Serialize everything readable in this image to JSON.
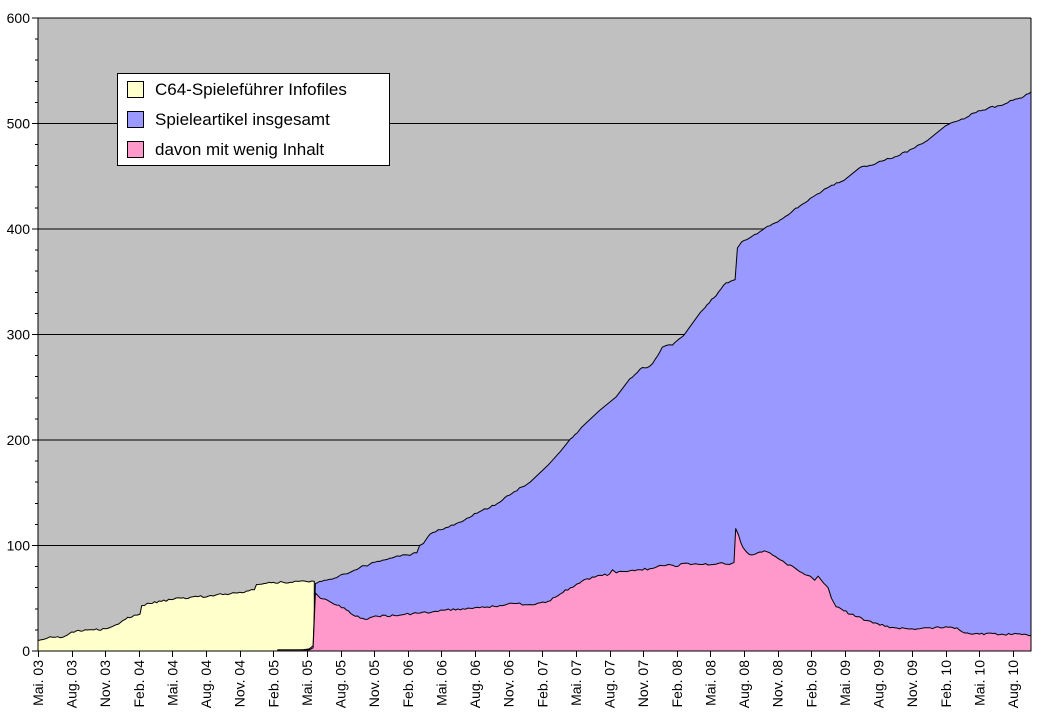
{
  "chart_data": {
    "type": "area",
    "title": "",
    "xlabel": "",
    "ylabel": "",
    "x_unit": "months since Mai. 03 (labels every 3 months)",
    "ylim": [
      0,
      600
    ],
    "y_ticks": [
      0,
      100,
      200,
      300,
      400,
      500,
      600
    ],
    "y_minor_tick_step": 20,
    "grid": "horizontal major gridlines, black, on gray plot background",
    "legend_position": "top-left",
    "x_months_span": 88.6,
    "x_tick_months": [
      0,
      3,
      6,
      9,
      12,
      15,
      18,
      21,
      24,
      27,
      30,
      33,
      36,
      39,
      42,
      45,
      48,
      51,
      54,
      57,
      60,
      63,
      66,
      69,
      72,
      75,
      78,
      81,
      84,
      87
    ],
    "x_tick_labels": [
      "Mai. 03",
      "Aug. 03",
      "Nov. 03",
      "Feb. 04",
      "Mai. 04",
      "Aug. 04",
      "Nov. 04",
      "Feb. 05",
      "Mai. 05",
      "Aug. 05",
      "Nov. 05",
      "Feb. 06",
      "Mai. 06",
      "Aug. 06",
      "Nov. 06",
      "Feb. 07",
      "Mai. 07",
      "Aug. 07",
      "Nov. 07",
      "Feb. 08",
      "Mai. 08",
      "Aug. 08",
      "Nov. 08",
      "Feb. 09",
      "Mai. 09",
      "Aug. 09",
      "Nov. 09",
      "Feb. 10",
      "Mai. 10",
      "Aug. 10"
    ],
    "colors": {
      "page_bg": "#FFFFFF",
      "plot_bg": "#C0C0C0",
      "grid": "#000000",
      "outline": "#000000",
      "axis": "#000000",
      "legend_bg": "#FFFFFF",
      "series_yellow": "#FFFFCC",
      "series_blue": "#9999FF",
      "series_pink": "#FF99CC"
    },
    "series": [
      {
        "name": "C64-Spieleführer Infofiles",
        "color": "#FFFFCC",
        "points": [
          [
            0,
            10
          ],
          [
            0.5,
            11
          ],
          [
            0.8,
            12
          ],
          [
            1.3,
            13
          ],
          [
            2.2,
            13
          ],
          [
            2.6,
            15
          ],
          [
            3.0,
            18
          ],
          [
            4.0,
            19
          ],
          [
            5.0,
            20
          ],
          [
            6.0,
            21
          ],
          [
            6.6,
            23
          ],
          [
            7.0,
            25
          ],
          [
            7.8,
            30
          ],
          [
            8.6,
            34
          ],
          [
            9.1,
            35
          ],
          [
            9.25,
            43
          ],
          [
            10.0,
            45
          ],
          [
            11.0,
            47
          ],
          [
            12.1,
            49
          ],
          [
            13.6,
            51
          ],
          [
            15.2,
            52
          ],
          [
            16.7,
            54
          ],
          [
            17.8,
            55
          ],
          [
            18.8,
            57
          ],
          [
            19.3,
            58
          ],
          [
            19.5,
            63
          ],
          [
            20.2,
            64
          ],
          [
            21.0,
            65
          ],
          [
            22.5,
            65
          ],
          [
            23.3,
            66
          ],
          [
            24.65,
            66
          ]
        ]
      },
      {
        "name": "Spieleartikel insgesamt",
        "color": "#9999FF",
        "points": [
          [
            21.4,
            1
          ],
          [
            23.5,
            1
          ],
          [
            24.2,
            2
          ],
          [
            24.55,
            5
          ],
          [
            24.75,
            64
          ],
          [
            25.3,
            66
          ],
          [
            26.0,
            68
          ],
          [
            27.3,
            73
          ],
          [
            28.7,
            79
          ],
          [
            30.3,
            85
          ],
          [
            31.8,
            89
          ],
          [
            33.0,
            91
          ],
          [
            33.8,
            93
          ],
          [
            34.05,
            100
          ],
          [
            34.4,
            102
          ],
          [
            35.0,
            111
          ],
          [
            36.4,
            117
          ],
          [
            37.6,
            122
          ],
          [
            39.4,
            132
          ],
          [
            41.2,
            141
          ],
          [
            42.5,
            151
          ],
          [
            43.9,
            160
          ],
          [
            45.5,
            176
          ],
          [
            46.6,
            189
          ],
          [
            47.5,
            201
          ],
          [
            48.5,
            212
          ],
          [
            50.1,
            228
          ],
          [
            51.6,
            241
          ],
          [
            52.8,
            258
          ],
          [
            53.7,
            267
          ],
          [
            54.6,
            270
          ],
          [
            55.1,
            277
          ],
          [
            55.7,
            288
          ],
          [
            56.6,
            290
          ],
          [
            57.6,
            299
          ],
          [
            59.1,
            321
          ],
          [
            59.9,
            330
          ],
          [
            60.7,
            340
          ],
          [
            61.4,
            349
          ],
          [
            62.2,
            352
          ],
          [
            62.4,
            382
          ],
          [
            62.8,
            388
          ],
          [
            63.7,
            393
          ],
          [
            65.3,
            403
          ],
          [
            66.7,
            412
          ],
          [
            68.0,
            422
          ],
          [
            68.9,
            429
          ],
          [
            70.6,
            440
          ],
          [
            71.9,
            446
          ],
          [
            73.3,
            458
          ],
          [
            74.9,
            463
          ],
          [
            76.9,
            470
          ],
          [
            78.0,
            476
          ],
          [
            79.6,
            486
          ],
          [
            81.0,
            498
          ],
          [
            82.2,
            503
          ],
          [
            83.9,
            512
          ],
          [
            85.8,
            517
          ],
          [
            87.0,
            522
          ],
          [
            88.0,
            526
          ],
          [
            88.6,
            530
          ]
        ]
      },
      {
        "name": "davon mit wenig Inhalt",
        "color": "#FF99CC",
        "points": [
          [
            21.4,
            1
          ],
          [
            24.2,
            1
          ],
          [
            24.55,
            3
          ],
          [
            24.75,
            55
          ],
          [
            25.2,
            50
          ],
          [
            26.0,
            47
          ],
          [
            27.3,
            41
          ],
          [
            28.3,
            33
          ],
          [
            29.2,
            30
          ],
          [
            30.3,
            33
          ],
          [
            32.3,
            34
          ],
          [
            34.1,
            36
          ],
          [
            36.4,
            39
          ],
          [
            39.4,
            41
          ],
          [
            41.2,
            43
          ],
          [
            42.5,
            45
          ],
          [
            43.9,
            44
          ],
          [
            45.5,
            47
          ],
          [
            46.6,
            54
          ],
          [
            47.5,
            60
          ],
          [
            48.5,
            66
          ],
          [
            49.7,
            70
          ],
          [
            51.0,
            73
          ],
          [
            51.25,
            77
          ],
          [
            51.6,
            74
          ],
          [
            52.8,
            76
          ],
          [
            54.6,
            78
          ],
          [
            56.2,
            82
          ],
          [
            56.9,
            80
          ],
          [
            57.6,
            83
          ],
          [
            59.1,
            82
          ],
          [
            60.7,
            83
          ],
          [
            61.7,
            82
          ],
          [
            62.1,
            84
          ],
          [
            62.25,
            116
          ],
          [
            62.5,
            110
          ],
          [
            62.7,
            103
          ],
          [
            62.9,
            98
          ],
          [
            63.2,
            94
          ],
          [
            63.7,
            91
          ],
          [
            64.2,
            93
          ],
          [
            64.8,
            95
          ],
          [
            65.3,
            93
          ],
          [
            66.0,
            88
          ],
          [
            66.7,
            83
          ],
          [
            67.5,
            79
          ],
          [
            68.2,
            74
          ],
          [
            68.9,
            71
          ],
          [
            69.3,
            67
          ],
          [
            69.6,
            71
          ],
          [
            69.9,
            67
          ],
          [
            70.5,
            60
          ],
          [
            70.8,
            50
          ],
          [
            71.2,
            42
          ],
          [
            71.9,
            38
          ],
          [
            72.9,
            33
          ],
          [
            73.9,
            29
          ],
          [
            74.9,
            26
          ],
          [
            76.0,
            22
          ],
          [
            78.0,
            21
          ],
          [
            79.6,
            22
          ],
          [
            81.0,
            23
          ],
          [
            82.0,
            22
          ],
          [
            82.7,
            17
          ],
          [
            84.0,
            16
          ],
          [
            85.0,
            17
          ],
          [
            86.0,
            16
          ],
          [
            87.0,
            16
          ],
          [
            88.0,
            16
          ],
          [
            88.6,
            15
          ]
        ]
      }
    ]
  },
  "legend": {
    "items": [
      {
        "label": "C64-Spieleführer Infofiles",
        "color": "#FFFFCC"
      },
      {
        "label": "Spieleartikel insgesamt",
        "color": "#9999FF"
      },
      {
        "label": "davon mit wenig Inhalt",
        "color": "#FF99CC"
      }
    ]
  }
}
